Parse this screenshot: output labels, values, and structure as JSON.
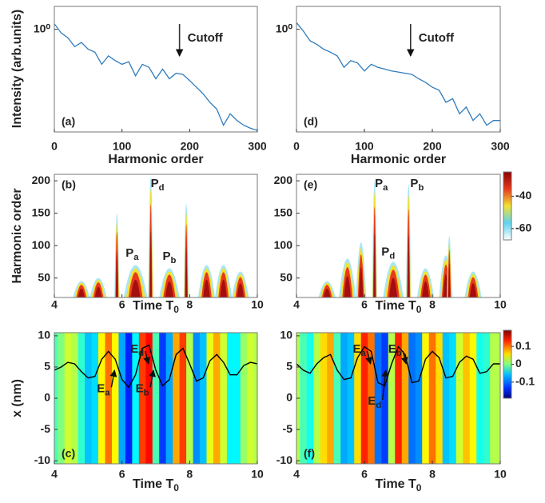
{
  "chart_data": [
    {
      "type": "line",
      "panel_label": "(a)",
      "ylabel": "Intensity (arb.units)",
      "xlabel": "Harmonic order",
      "yscale": "log",
      "x": [
        0,
        10,
        20,
        30,
        40,
        50,
        60,
        70,
        80,
        90,
        100,
        110,
        120,
        130,
        140,
        150,
        160,
        170,
        180,
        190,
        200,
        210,
        220,
        230,
        240,
        250,
        260,
        270,
        280,
        290,
        300
      ],
      "values": [
        1.4,
        0.8,
        0.6,
        0.35,
        0.45,
        0.3,
        0.25,
        0.12,
        0.2,
        0.15,
        0.12,
        0.14,
        0.06,
        0.12,
        0.1,
        0.05,
        0.09,
        0.05,
        0.07,
        0.065,
        0.045,
        0.03,
        0.02,
        0.012,
        0.008,
        0.003,
        0.006,
        0.004,
        0.003,
        0.0025,
        0.0022
      ],
      "color": "#2f7bbd",
      "xlim": [
        0,
        300
      ],
      "ylim": [
        0.002,
        4
      ],
      "xticks": [
        0,
        100,
        200,
        300
      ],
      "yticks": [
        {
          "value": 1,
          "label": "10⁰"
        }
      ],
      "annotations": [
        {
          "text": "Cutoff",
          "x": 185
        }
      ]
    },
    {
      "type": "spectrogram",
      "panel_label": "(b)",
      "ylabel": "Harmonic order",
      "xlabel": {
        "text": "Time  T",
        "sub": "0"
      },
      "t": [
        4.8,
        5.3,
        5.85,
        6.4,
        6.85,
        7.4,
        7.9,
        8.5,
        9.0,
        9.5
      ],
      "peak": [
        45,
        50,
        150,
        70,
        205,
        65,
        165,
        70,
        70,
        60
      ],
      "width": [
        0.5,
        0.5,
        0.15,
        0.7,
        0.15,
        0.6,
        0.15,
        0.5,
        0.5,
        0.5
      ],
      "xlim": [
        4,
        10
      ],
      "ylim": [
        20,
        210
      ],
      "xticks": [
        4,
        6,
        8,
        10
      ],
      "yticks": [
        50,
        100,
        150,
        200
      ],
      "annotations": [
        {
          "text": "P",
          "sub": "a",
          "x": 6.3,
          "y": 88
        },
        {
          "text": "P",
          "sub": "d",
          "x": 7.05,
          "y": 195
        },
        {
          "text": "P",
          "sub": "b",
          "x": 7.4,
          "y": 83
        }
      ]
    },
    {
      "type": "field_map",
      "panel_label": "(c)",
      "ylabel": "x (nm)",
      "xlabel": {
        "text": "Time  T",
        "sub": "0"
      },
      "x": [
        4.0,
        4.2,
        4.4,
        4.6,
        4.8,
        5.0,
        5.2,
        5.4,
        5.6,
        5.8,
        6.0,
        6.2,
        6.4,
        6.6,
        6.8,
        7.0,
        7.2,
        7.4,
        7.6,
        7.8,
        8.0,
        8.2,
        8.4,
        8.6,
        8.8,
        9.0,
        9.2,
        9.4,
        9.6,
        9.8,
        10.0
      ],
      "values": [
        -0.02,
        0,
        0.03,
        0.02,
        -0.03,
        -0.07,
        -0.06,
        0.05,
        0.1,
        0.05,
        -0.08,
        -0.13,
        -0.05,
        0.12,
        0.14,
        -0.02,
        -0.12,
        -0.08,
        0.08,
        0.12,
        0.02,
        -0.09,
        -0.07,
        0.04,
        0.08,
        0.03,
        -0.05,
        -0.05,
        0.01,
        0.03,
        0.02
      ],
      "xlim": [
        4,
        10
      ],
      "ylim": [
        -10.5,
        10.5
      ],
      "xticks": [
        4,
        6,
        8,
        10
      ],
      "yticks": [
        -10,
        -5,
        0,
        5,
        10
      ],
      "annotations": [
        {
          "text": "E",
          "sub": "d",
          "x": 6.45,
          "y": 7.8
        },
        {
          "text": "E",
          "sub": "a",
          "x": 5.45,
          "y": 1.5
        },
        {
          "text": "E",
          "sub": "b",
          "x": 6.6,
          "y": 1.5
        }
      ]
    },
    {
      "type": "line",
      "panel_label": "(d)",
      "xlabel": "Harmonic order",
      "yscale": "log",
      "x": [
        0,
        10,
        20,
        30,
        40,
        50,
        60,
        70,
        80,
        90,
        100,
        110,
        120,
        130,
        140,
        150,
        160,
        170,
        180,
        190,
        200,
        210,
        220,
        230,
        240,
        250,
        260,
        270,
        280,
        290,
        300
      ],
      "values": [
        1.5,
        0.9,
        0.5,
        0.4,
        0.3,
        0.25,
        0.2,
        0.1,
        0.15,
        0.13,
        0.08,
        0.12,
        0.1,
        0.09,
        0.08,
        0.075,
        0.07,
        0.065,
        0.05,
        0.04,
        0.03,
        0.025,
        0.012,
        0.015,
        0.006,
        0.009,
        0.004,
        0.006,
        0.003,
        0.004,
        0.004
      ],
      "color": "#2f7bbd",
      "xlim": [
        0,
        300
      ],
      "ylim": [
        0.002,
        4
      ],
      "xticks": [
        0,
        100,
        200,
        300
      ],
      "yticks": [
        {
          "value": 1,
          "label": "10⁰"
        }
      ],
      "annotations": [
        {
          "text": "Cutoff",
          "x": 168
        }
      ]
    },
    {
      "type": "spectrogram",
      "panel_label": "(e)",
      "xlabel": {
        "text": "Time  T",
        "sub": "0"
      },
      "t": [
        4.9,
        5.5,
        5.9,
        6.3,
        6.85,
        7.3,
        7.8,
        8.4,
        8.5,
        9.2
      ],
      "peak": [
        45,
        80,
        105,
        200,
        75,
        195,
        65,
        85,
        115,
        60
      ],
      "width": [
        0.5,
        0.5,
        0.3,
        0.15,
        0.6,
        0.15,
        0.5,
        0.4,
        0.15,
        0.5
      ],
      "xlim": [
        4,
        10
      ],
      "ylim": [
        20,
        210
      ],
      "xticks": [
        4,
        6,
        8,
        10
      ],
      "yticks": [
        50,
        100,
        150,
        200
      ],
      "colorbar": {
        "clim": [
          -67,
          -25
        ],
        "ticks": [
          -40,
          -60
        ]
      },
      "annotations": [
        {
          "text": "P",
          "sub": "a",
          "x": 6.5,
          "y": 195
        },
        {
          "text": "P",
          "sub": "d",
          "x": 6.7,
          "y": 90
        },
        {
          "text": "P",
          "sub": "b",
          "x": 7.55,
          "y": 195
        }
      ]
    },
    {
      "type": "field_map",
      "panel_label": "(f)",
      "xlabel": {
        "text": "Time  T",
        "sub": "0"
      },
      "x": [
        4.0,
        4.2,
        4.4,
        4.6,
        4.8,
        5.0,
        5.2,
        5.4,
        5.6,
        5.8,
        6.0,
        6.2,
        6.4,
        6.6,
        6.8,
        7.0,
        7.2,
        7.4,
        7.6,
        7.8,
        8.0,
        8.2,
        8.4,
        8.6,
        8.8,
        9.0,
        9.2,
        9.4,
        9.6,
        9.8,
        10.0
      ],
      "values": [
        0.02,
        -0.02,
        -0.04,
        0.02,
        0.06,
        0.08,
        -0.02,
        -0.08,
        -0.07,
        0.06,
        0.13,
        0.1,
        -0.1,
        -0.12,
        0.02,
        0.13,
        0.08,
        -0.1,
        -0.09,
        0.05,
        0.1,
        0.06,
        -0.07,
        -0.06,
        0.03,
        0.07,
        0.05,
        -0.04,
        -0.03,
        0.02,
        0.02
      ],
      "xlim": [
        4,
        10
      ],
      "ylim": [
        -10.5,
        10.5
      ],
      "xticks": [
        4,
        6,
        8,
        10
      ],
      "yticks": [
        -10,
        -5,
        0,
        5,
        10
      ],
      "colorbar": {
        "clim": [
          -0.19,
          0.19
        ],
        "ticks": [
          0.1,
          0,
          -0.1
        ]
      },
      "annotations": [
        {
          "text": "E",
          "sub": "a",
          "x": 5.85,
          "y": 7.8
        },
        {
          "text": "E",
          "sub": "b",
          "x": 6.9,
          "y": 7.8
        },
        {
          "text": "E",
          "sub": "d",
          "x": 6.3,
          "y": -0.5
        }
      ]
    }
  ]
}
